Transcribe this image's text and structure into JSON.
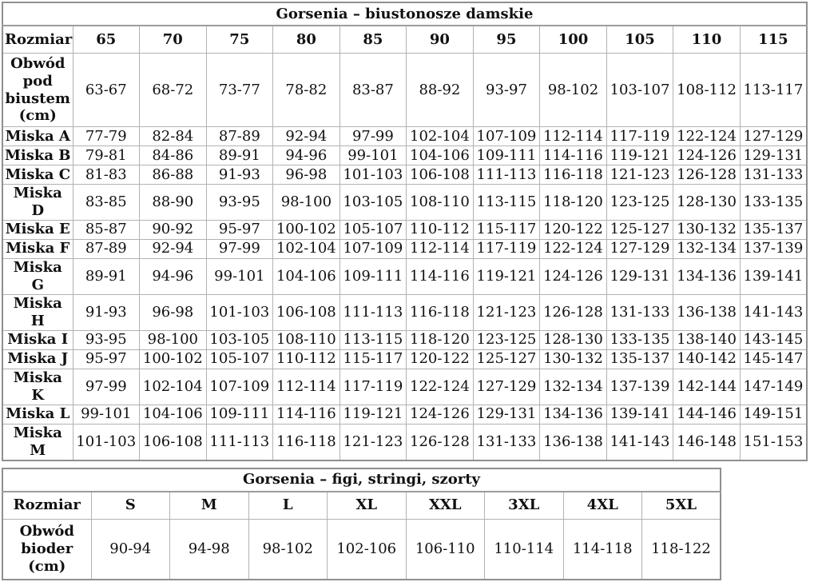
{
  "bras": {
    "title": "Gorsenia – biustonosze damskie",
    "size_label": "Rozmiar",
    "sizes": [
      "65",
      "70",
      "75",
      "80",
      "85",
      "90",
      "95",
      "100",
      "105",
      "110",
      "115"
    ],
    "underbust_label": "Obwód pod biustem (cm)",
    "underbust_values": [
      "63-67",
      "68-72",
      "73-77",
      "78-82",
      "83-87",
      "88-92",
      "93-97",
      "98-102",
      "103-107",
      "108-112",
      "113-117"
    ],
    "cup_rows": [
      {
        "label": "Miska A",
        "values": [
          "77-79",
          "82-84",
          "87-89",
          "92-94",
          "97-99",
          "102-104",
          "107-109",
          "112-114",
          "117-119",
          "122-124",
          "127-129"
        ]
      },
      {
        "label": "Miska B",
        "values": [
          "79-81",
          "84-86",
          "89-91",
          "94-96",
          "99-101",
          "104-106",
          "109-111",
          "114-116",
          "119-121",
          "124-126",
          "129-131"
        ]
      },
      {
        "label": "Miska C",
        "values": [
          "81-83",
          "86-88",
          "91-93",
          "96-98",
          "101-103",
          "106-108",
          "111-113",
          "116-118",
          "121-123",
          "126-128",
          "131-133"
        ]
      },
      {
        "label": "Miska D",
        "values": [
          "83-85",
          "88-90",
          "93-95",
          "98-100",
          "103-105",
          "108-110",
          "113-115",
          "118-120",
          "123-125",
          "128-130",
          "133-135"
        ]
      },
      {
        "label": "Miska E",
        "values": [
          "85-87",
          "90-92",
          "95-97",
          "100-102",
          "105-107",
          "110-112",
          "115-117",
          "120-122",
          "125-127",
          "130-132",
          "135-137"
        ]
      },
      {
        "label": "Miska F",
        "values": [
          "87-89",
          "92-94",
          "97-99",
          "102-104",
          "107-109",
          "112-114",
          "117-119",
          "122-124",
          "127-129",
          "132-134",
          "137-139"
        ]
      },
      {
        "label": "Miska G",
        "values": [
          "89-91",
          "94-96",
          "99-101",
          "104-106",
          "109-111",
          "114-116",
          "119-121",
          "124-126",
          "129-131",
          "134-136",
          "139-141"
        ]
      },
      {
        "label": "Miska H",
        "values": [
          "91-93",
          "96-98",
          "101-103",
          "106-108",
          "111-113",
          "116-118",
          "121-123",
          "126-128",
          "131-133",
          "136-138",
          "141-143"
        ]
      },
      {
        "label": "Miska I",
        "values": [
          "93-95",
          "98-100",
          "103-105",
          "108-110",
          "113-115",
          "118-120",
          "123-125",
          "128-130",
          "133-135",
          "138-140",
          "143-145"
        ]
      },
      {
        "label": "Miska J",
        "values": [
          "95-97",
          "100-102",
          "105-107",
          "110-112",
          "115-117",
          "120-122",
          "125-127",
          "130-132",
          "135-137",
          "140-142",
          "145-147"
        ]
      },
      {
        "label": "Miska K",
        "values": [
          "97-99",
          "102-104",
          "107-109",
          "112-114",
          "117-119",
          "122-124",
          "127-129",
          "132-134",
          "137-139",
          "142-144",
          "147-149"
        ]
      },
      {
        "label": "Miska L",
        "values": [
          "99-101",
          "104-106",
          "109-111",
          "114-116",
          "119-121",
          "124-126",
          "129-131",
          "134-136",
          "139-141",
          "144-146",
          "149-151"
        ]
      },
      {
        "label": "Miska M",
        "values": [
          "101-103",
          "106-108",
          "111-113",
          "116-118",
          "121-123",
          "126-128",
          "131-133",
          "136-138",
          "141-143",
          "146-148",
          "151-153"
        ]
      }
    ]
  },
  "briefs": {
    "title": "Gorsenia – figi, stringi, szorty",
    "size_label": "Rozmiar",
    "sizes": [
      "S",
      "M",
      "L",
      "XL",
      "XXL",
      "3XL",
      "4XL",
      "5XL"
    ],
    "hips_label": "Obwód bioder (cm)",
    "hips_values": [
      "90-94",
      "94-98",
      "98-102",
      "102-106",
      "106-110",
      "110-114",
      "114-118",
      "118-122"
    ]
  }
}
